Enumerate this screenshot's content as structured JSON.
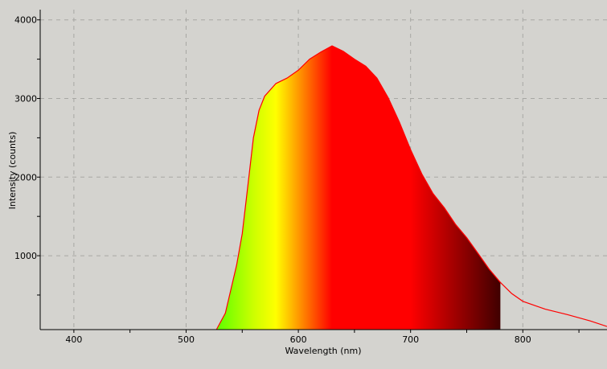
{
  "chart_data": {
    "type": "area",
    "title": "",
    "xlabel": "Wavelength (nm)",
    "ylabel": "Intensity (counts)",
    "xlim": [
      370,
      875
    ],
    "ylim": [
      60,
      4130
    ],
    "x_ticks": [
      400,
      500,
      600,
      700,
      800
    ],
    "y_ticks": [
      1000,
      2000,
      3000,
      4000
    ],
    "grid": true,
    "fill_end_nm": 780,
    "colors": {
      "background": "#d4d3cf",
      "line": "#ff0000",
      "grid": "#a8a8a4"
    },
    "gradient_stops": [
      {
        "nm": 530,
        "color": "#66ff00"
      },
      {
        "nm": 560,
        "color": "#ccff00"
      },
      {
        "nm": 580,
        "color": "#ffff00"
      },
      {
        "nm": 605,
        "color": "#ff8000"
      },
      {
        "nm": 630,
        "color": "#ff0000"
      },
      {
        "nm": 700,
        "color": "#ff0000"
      },
      {
        "nm": 780,
        "color": "#400000"
      }
    ],
    "series": [
      {
        "x": [
          527,
          535,
          545,
          550,
          555,
          560,
          565,
          570,
          580,
          590,
          600,
          610,
          620,
          630,
          640,
          650,
          660,
          670,
          680,
          690,
          700,
          710,
          720,
          730,
          740,
          750,
          760,
          770,
          780,
          790,
          800,
          820,
          840,
          860,
          875
        ],
        "y": [
          60,
          270,
          880,
          1280,
          1890,
          2500,
          2850,
          3030,
          3190,
          3260,
          3360,
          3500,
          3590,
          3670,
          3600,
          3500,
          3410,
          3260,
          3010,
          2700,
          2350,
          2040,
          1790,
          1610,
          1400,
          1230,
          1030,
          830,
          660,
          520,
          420,
          320,
          250,
          170,
          100
        ]
      }
    ]
  }
}
